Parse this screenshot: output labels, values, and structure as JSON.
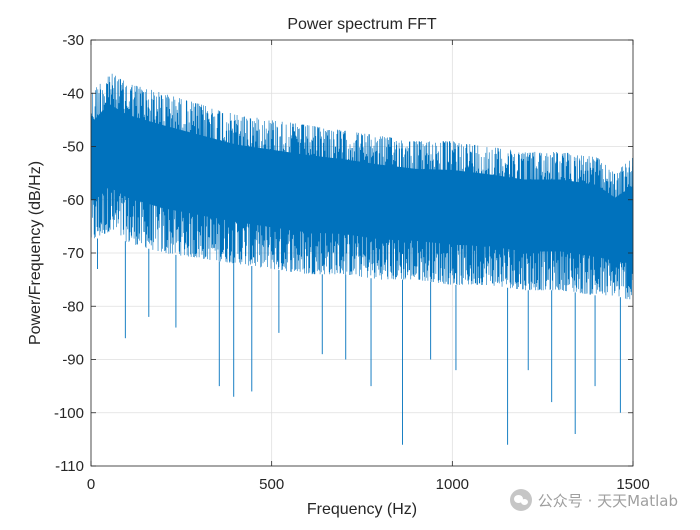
{
  "chart_data": {
    "type": "line",
    "title": "Power spectrum FFT",
    "xlabel": "Frequency (Hz)",
    "ylabel": "Power/Frequency (dB/Hz)",
    "xlim": [
      0,
      1500
    ],
    "ylim": [
      -110,
      -30
    ],
    "xticks": [
      "0",
      "500",
      "1000",
      "1500"
    ],
    "yticks": [
      "-30",
      "-40",
      "-50",
      "-60",
      "-70",
      "-80",
      "-90",
      "-100",
      "-110"
    ],
    "grid": true,
    "series": [
      {
        "color": "#0072BD",
        "x": [
          0,
          50,
          100,
          150,
          200,
          300,
          400,
          500,
          600,
          700,
          800,
          900,
          1000,
          1100,
          1200,
          1300,
          1400,
          1450,
          1500
        ],
        "upper": [
          -40,
          -36,
          -38,
          -39,
          -40,
          -42,
          -44,
          -45,
          -46,
          -47,
          -48,
          -49,
          -49,
          -50,
          -51,
          -51,
          -52,
          -55,
          -52
        ],
        "lower": [
          -68,
          -66,
          -68,
          -69,
          -70,
          -71,
          -72,
          -73,
          -74,
          -74,
          -75,
          -75,
          -76,
          -76,
          -77,
          -77,
          -78,
          -78,
          -79
        ],
        "spikes": [
          {
            "x": 18,
            "y": -73
          },
          {
            "x": 95,
            "y": -86
          },
          {
            "x": 160,
            "y": -82
          },
          {
            "x": 235,
            "y": -84
          },
          {
            "x": 355,
            "y": -95
          },
          {
            "x": 395,
            "y": -97
          },
          {
            "x": 445,
            "y": -96
          },
          {
            "x": 520,
            "y": -85
          },
          {
            "x": 640,
            "y": -89
          },
          {
            "x": 705,
            "y": -90
          },
          {
            "x": 775,
            "y": -95
          },
          {
            "x": 862,
            "y": -106
          },
          {
            "x": 940,
            "y": -90
          },
          {
            "x": 1010,
            "y": -92
          },
          {
            "x": 1153,
            "y": -106
          },
          {
            "x": 1210,
            "y": -92
          },
          {
            "x": 1275,
            "y": -98
          },
          {
            "x": 1340,
            "y": -104
          },
          {
            "x": 1395,
            "y": -95
          },
          {
            "x": 1465,
            "y": -100
          }
        ]
      }
    ]
  },
  "watermark": {
    "text": "公众号 · 天天Matlab",
    "icon": "wechat-icon"
  }
}
